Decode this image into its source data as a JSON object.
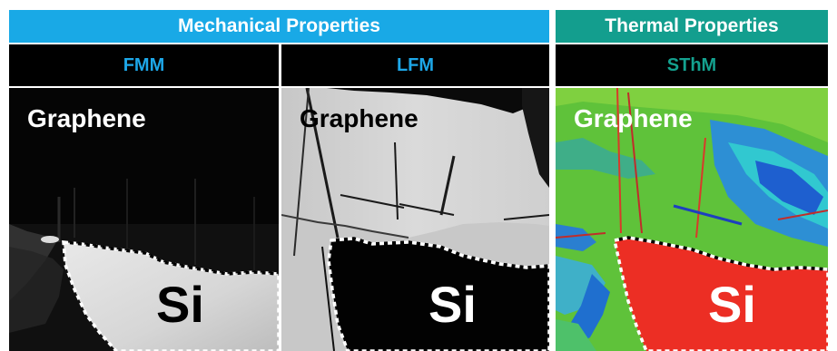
{
  "header": {
    "mechanical_label": "Mechanical Properties",
    "thermal_label": "Thermal Properties",
    "mechanical_color": "#19a9e6",
    "thermal_color": "#139e8e"
  },
  "panels": [
    {
      "mode": "FMM",
      "mode_color": "#1da7e8",
      "region_top": "Graphene",
      "region_bottom": "Si"
    },
    {
      "mode": "LFM",
      "mode_color": "#1da7e8",
      "region_top": "Graphene",
      "region_bottom": "Si"
    },
    {
      "mode": "SThM",
      "mode_color": "#14a18f",
      "region_top": "Graphene",
      "region_bottom": "Si"
    }
  ]
}
